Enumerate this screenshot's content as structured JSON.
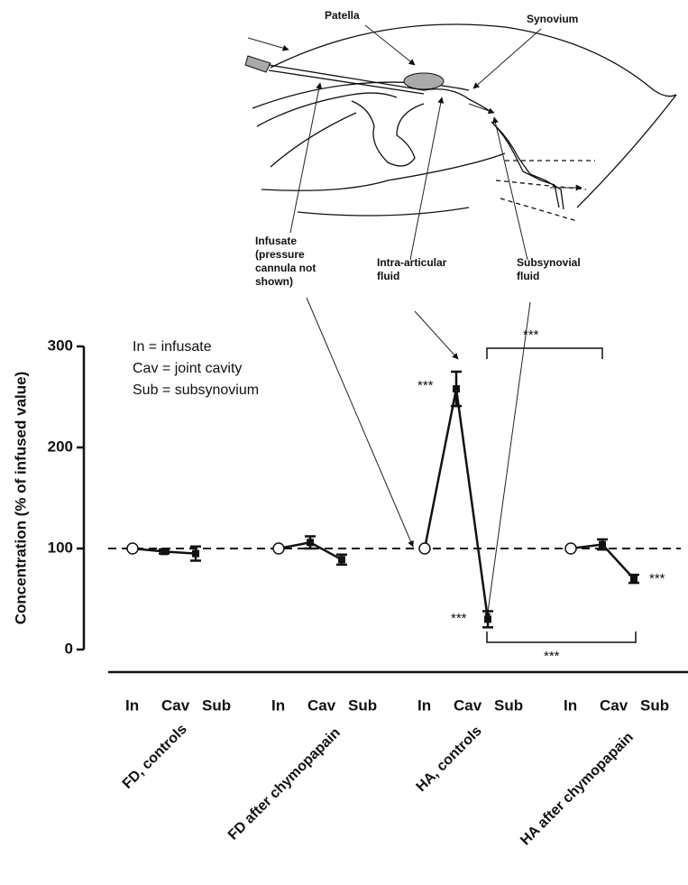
{
  "diagram": {
    "labels": [
      {
        "lines": [
          "Patella"
        ]
      },
      {
        "lines": [
          "Synovium"
        ]
      },
      {
        "lines": [
          "Infusate",
          "(pressure",
          "cannula not",
          "shown)"
        ]
      },
      {
        "lines": [
          "Intra-articular",
          "fluid"
        ]
      },
      {
        "lines": [
          "Subsynovial",
          "fluid"
        ]
      }
    ]
  },
  "chart_data": {
    "type": "line",
    "y_label": "Concentration (% of infused value)",
    "ylim": [
      0,
      300
    ],
    "yticks": [
      0,
      100,
      200,
      300
    ],
    "reference": 100,
    "categories": [
      "In",
      "Cav",
      "Sub"
    ],
    "legend_notes": [
      "In = infusate",
      "Cav = joint cavity",
      "Sub = subsynovium"
    ],
    "series": [
      {
        "name": "FD, controls",
        "values": [
          100,
          97,
          95
        ],
        "errors": [
          null,
          2,
          7
        ]
      },
      {
        "name": "FD after chymopapain",
        "values": [
          100,
          106,
          89
        ],
        "errors": [
          null,
          6,
          5
        ]
      },
      {
        "name": "HA, controls",
        "values": [
          100,
          258,
          30
        ],
        "errors": [
          null,
          17,
          8
        ]
      },
      {
        "name": "HA after chymopapain",
        "values": [
          100,
          104,
          70
        ],
        "errors": [
          null,
          5,
          4
        ]
      }
    ],
    "annotations": [
      "***",
      "***",
      "***",
      "***",
      "***"
    ]
  }
}
